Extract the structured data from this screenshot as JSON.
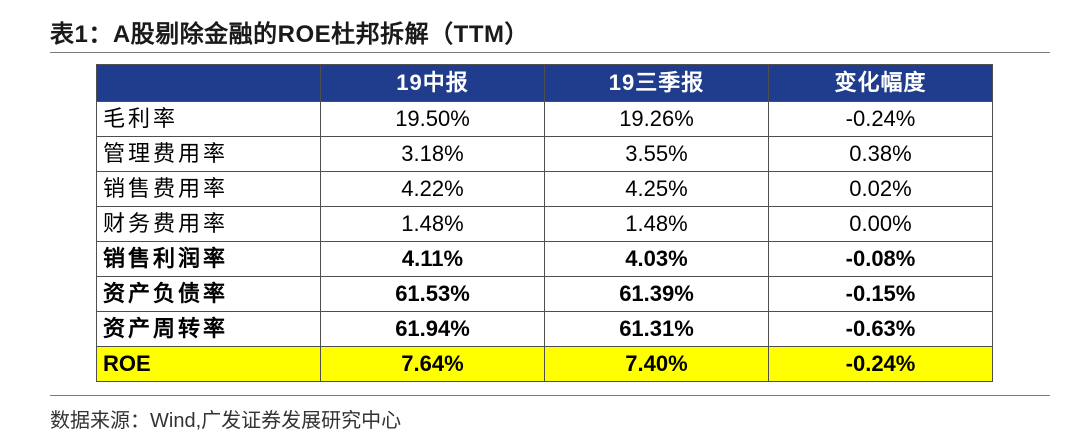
{
  "title": "表1：A股剔除金融的ROE杜邦拆解（TTM）",
  "table": {
    "headers": [
      "",
      "19中报",
      "19三季报",
      "变化幅度"
    ],
    "rows": [
      {
        "label": "毛利率",
        "values": [
          "19.50%",
          "19.26%",
          "-0.24%"
        ],
        "style": "normal"
      },
      {
        "label": "管理费用率",
        "values": [
          "3.18%",
          "3.55%",
          "0.38%"
        ],
        "style": "normal"
      },
      {
        "label": "销售费用率",
        "values": [
          "4.22%",
          "4.25%",
          "0.02%"
        ],
        "style": "normal"
      },
      {
        "label": "财务费用率",
        "values": [
          "1.48%",
          "1.48%",
          "0.00%"
        ],
        "style": "normal"
      },
      {
        "label": "销售利润率",
        "values": [
          "4.11%",
          "4.03%",
          "-0.08%"
        ],
        "style": "bold"
      },
      {
        "label": "资产负债率",
        "values": [
          "61.53%",
          "61.39%",
          "-0.15%"
        ],
        "style": "bold"
      },
      {
        "label": "资产周转率",
        "values": [
          "61.94%",
          "61.31%",
          "-0.63%"
        ],
        "style": "bold"
      },
      {
        "label": "ROE",
        "values": [
          "7.64%",
          "7.40%",
          "-0.24%"
        ],
        "style": "highlight"
      }
    ]
  },
  "source": "数据来源：Wind,广发证券发展研究中心",
  "colors": {
    "header_bg": "#1f3d8c",
    "header_text": "#ffffff",
    "highlight_row": "#ffff00"
  }
}
